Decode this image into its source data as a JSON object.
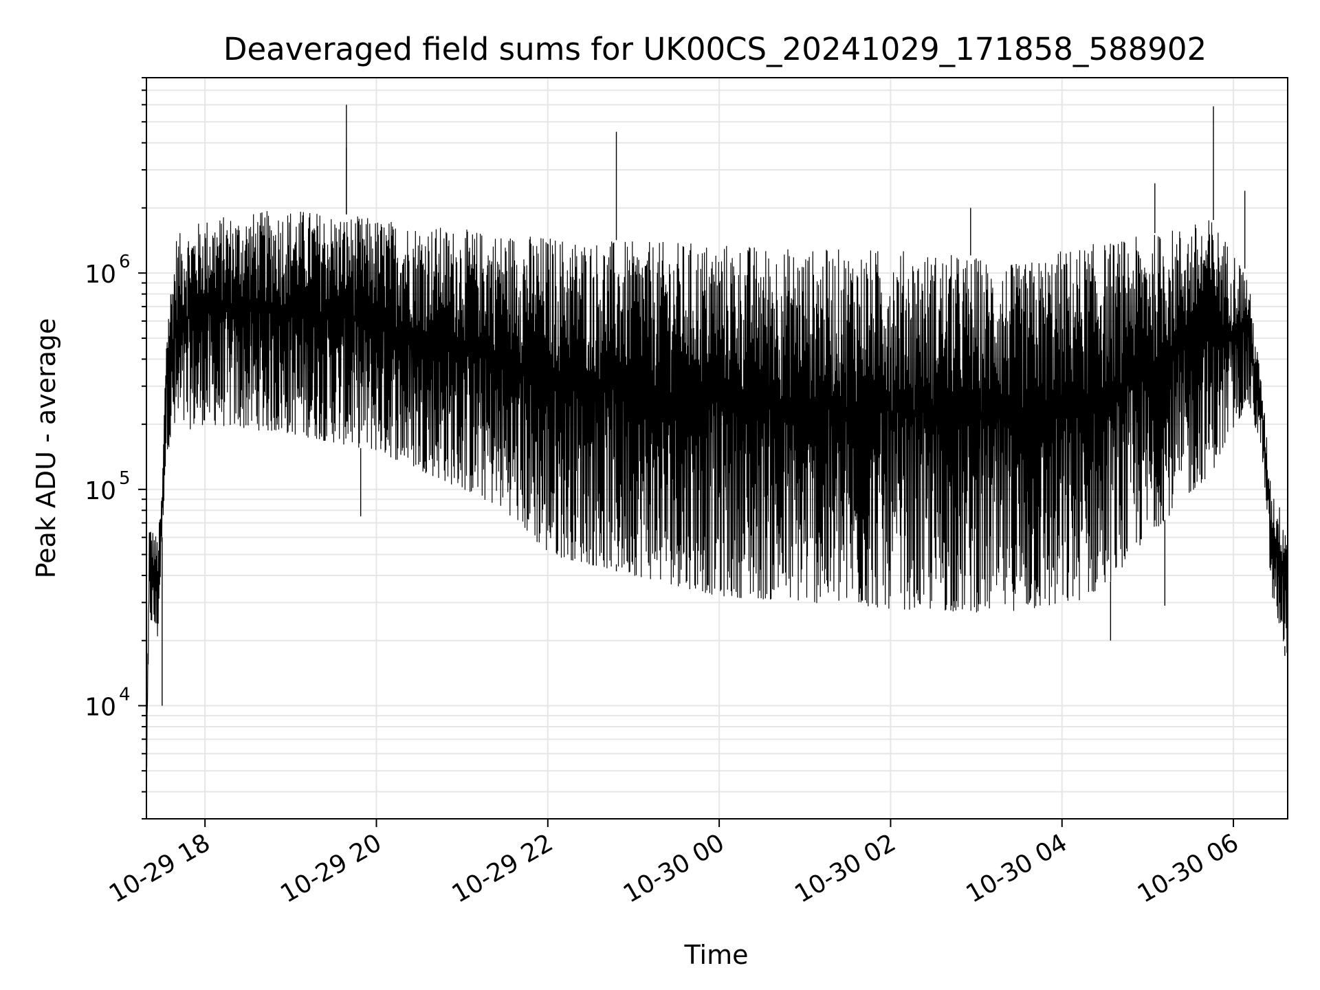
{
  "chart_data": {
    "type": "line",
    "title": "Deaveraged field sums for UK00CS_20241029_171858_588902",
    "xlabel": "Time",
    "ylabel": "Peak ADU - average",
    "x_range": [
      "2024-10-29 17:19",
      "2024-10-30 06:38"
    ],
    "ylim": [
      3000,
      8000000
    ],
    "yscale": "log",
    "grid": true,
    "line_color": "#000000",
    "grid_color": "#e6e6e6",
    "x_ticks": [
      {
        "value": "2024-10-29 18:00",
        "label": "10-29 18"
      },
      {
        "value": "2024-10-29 20:00",
        "label": "10-29 20"
      },
      {
        "value": "2024-10-29 22:00",
        "label": "10-29 22"
      },
      {
        "value": "2024-10-30 00:00",
        "label": "10-30 00"
      },
      {
        "value": "2024-10-30 02:00",
        "label": "10-30 02"
      },
      {
        "value": "2024-10-30 04:00",
        "label": "10-30 04"
      },
      {
        "value": "2024-10-30 06:00",
        "label": "10-30 06"
      }
    ],
    "y_ticks": [
      {
        "value": 10000,
        "base": "10",
        "exp": "4"
      },
      {
        "value": 100000,
        "base": "10",
        "exp": "5"
      },
      {
        "value": 1000000,
        "base": "10",
        "exp": "6"
      }
    ],
    "series": [
      {
        "name": "",
        "upper_envelope": [
          [
            "2024-10-29 17:19",
            5000
          ],
          [
            "2024-10-29 17:21",
            70000
          ],
          [
            "2024-10-29 17:27",
            60000
          ],
          [
            "2024-10-29 17:30",
            100000
          ],
          [
            "2024-10-29 17:33",
            600000
          ],
          [
            "2024-10-29 17:40",
            1500000
          ],
          [
            "2024-10-29 18:00",
            1800000
          ],
          [
            "2024-10-29 19:00",
            2000000
          ],
          [
            "2024-10-29 20:00",
            1800000
          ],
          [
            "2024-10-29 21:00",
            1600000
          ],
          [
            "2024-10-29 22:00",
            1500000
          ],
          [
            "2024-10-29 23:00",
            1400000
          ],
          [
            "2024-10-30 00:00",
            1400000
          ],
          [
            "2024-10-30 01:00",
            1300000
          ],
          [
            "2024-10-30 02:00",
            1300000
          ],
          [
            "2024-10-30 03:00",
            1200000
          ],
          [
            "2024-10-30 03:30",
            1100000
          ],
          [
            "2024-10-30 04:00",
            1300000
          ],
          [
            "2024-10-30 04:30",
            1400000
          ],
          [
            "2024-10-30 05:00",
            1500000
          ],
          [
            "2024-10-30 05:45",
            1800000
          ],
          [
            "2024-10-30 06:10",
            1000000
          ],
          [
            "2024-10-30 06:20",
            300000
          ],
          [
            "2024-10-30 06:27",
            100000
          ],
          [
            "2024-10-30 06:38",
            70000
          ]
        ],
        "lower_envelope": [
          [
            "2024-10-29 17:19",
            4000
          ],
          [
            "2024-10-29 17:21",
            25000
          ],
          [
            "2024-10-29 17:27",
            20000
          ],
          [
            "2024-10-29 17:30",
            60000
          ],
          [
            "2024-10-29 17:33",
            150000
          ],
          [
            "2024-10-29 17:40",
            180000
          ],
          [
            "2024-10-29 18:00",
            200000
          ],
          [
            "2024-10-29 19:00",
            180000
          ],
          [
            "2024-10-29 20:00",
            150000
          ],
          [
            "2024-10-29 21:00",
            100000
          ],
          [
            "2024-10-29 21:30",
            80000
          ],
          [
            "2024-10-29 22:00",
            50000
          ],
          [
            "2024-10-29 23:00",
            40000
          ],
          [
            "2024-10-30 00:00",
            32000
          ],
          [
            "2024-10-30 01:00",
            30000
          ],
          [
            "2024-10-30 02:00",
            28000
          ],
          [
            "2024-10-30 03:00",
            27000
          ],
          [
            "2024-10-30 04:00",
            28000
          ],
          [
            "2024-10-30 04:30",
            35000
          ],
          [
            "2024-10-30 05:00",
            60000
          ],
          [
            "2024-10-30 05:45",
            120000
          ],
          [
            "2024-10-30 06:10",
            250000
          ],
          [
            "2024-10-30 06:20",
            150000
          ],
          [
            "2024-10-30 06:27",
            30000
          ],
          [
            "2024-10-30 06:38",
            17000
          ]
        ],
        "spikes": [
          [
            "2024-10-29 17:30",
            10000
          ],
          [
            "2024-10-29 19:39",
            6000000
          ],
          [
            "2024-10-29 19:39",
            3800000
          ],
          [
            "2024-10-29 19:49",
            75000
          ],
          [
            "2024-10-29 22:48",
            4500000
          ],
          [
            "2024-10-29 22:48",
            45000
          ],
          [
            "2024-10-30 02:56",
            2000000
          ],
          [
            "2024-10-30 04:34",
            20000
          ],
          [
            "2024-10-30 05:05",
            2600000
          ],
          [
            "2024-10-30 05:12",
            29000
          ],
          [
            "2024-10-30 05:46",
            5900000
          ],
          [
            "2024-10-30 06:08",
            2400000
          ],
          [
            "2024-10-30 06:36",
            17000
          ]
        ]
      }
    ]
  }
}
